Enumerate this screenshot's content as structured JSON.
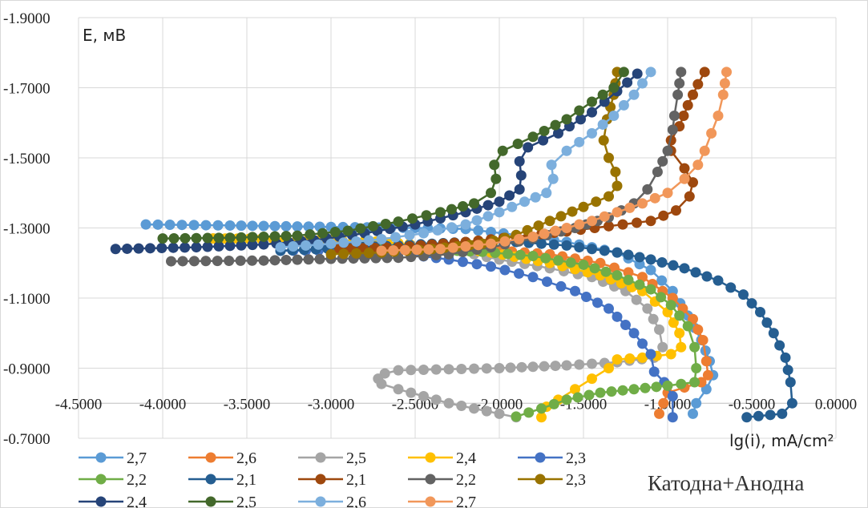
{
  "chart_data": {
    "type": "scatter",
    "title": "",
    "xlabel": "lg(i), mA/cm²",
    "ylabel": "E, мВ",
    "annotation": "Катодна+Анодна",
    "xlim": [
      -4.5,
      0.0
    ],
    "ylim": [
      -0.7,
      -1.9
    ],
    "x_ticks": [
      "-4.5000",
      "-4.0000",
      "-3.5000",
      "-3.0000",
      "-2.5000",
      "-2.0000",
      "-1.5000",
      "-1.0000",
      "-0.5000",
      "0.0000"
    ],
    "y_ticks": [
      "-1.9000",
      "-1.7000",
      "-1.5000",
      "-1.3000",
      "-1.1000",
      "-0.9000",
      "-0.7000"
    ],
    "gridlines": true,
    "legend_position": "bottom",
    "series": [
      {
        "name": "2,7",
        "color": "#5b9bd5",
        "points": [
          [
            -4.1,
            -1.31
          ],
          [
            -3.6,
            -1.307
          ],
          [
            -3.0,
            -1.303
          ],
          [
            -2.5,
            -1.3
          ],
          [
            -2.2,
            -1.297
          ],
          [
            -1.9,
            -1.28
          ],
          [
            -1.6,
            -1.26
          ],
          [
            -1.3,
            -1.23
          ],
          [
            -1.1,
            -1.18
          ],
          [
            -0.97,
            -1.12
          ],
          [
            -0.88,
            -1.05
          ],
          [
            -0.8,
            -0.98
          ],
          [
            -0.75,
            -0.92
          ],
          [
            -0.73,
            -0.88
          ],
          [
            -0.77,
            -0.84
          ],
          [
            -0.83,
            -0.8
          ],
          [
            -0.85,
            -0.77
          ]
        ]
      },
      {
        "name": "2,6",
        "color": "#ed7d31",
        "points": [
          [
            -2.6,
            -1.235
          ],
          [
            -2.3,
            -1.237
          ],
          [
            -2.0,
            -1.235
          ],
          [
            -1.7,
            -1.225
          ],
          [
            -1.4,
            -1.2
          ],
          [
            -1.15,
            -1.16
          ],
          [
            -0.97,
            -1.1
          ],
          [
            -0.85,
            -1.04
          ],
          [
            -0.79,
            -0.98
          ],
          [
            -0.77,
            -0.92
          ],
          [
            -0.76,
            -0.88
          ],
          [
            -0.8,
            -0.86
          ],
          [
            -0.9,
            -0.845
          ],
          [
            -1.0,
            -0.83
          ],
          [
            -1.05,
            -0.77
          ]
        ]
      },
      {
        "name": "2,5",
        "color": "#a5a5a5",
        "points": [
          [
            -3.7,
            -1.27
          ],
          [
            -3.4,
            -1.268
          ],
          [
            -3.0,
            -1.262
          ],
          [
            -2.6,
            -1.255
          ],
          [
            -2.3,
            -1.24
          ],
          [
            -2.0,
            -1.21
          ],
          [
            -1.7,
            -1.185
          ],
          [
            -1.45,
            -1.16
          ],
          [
            -1.25,
            -1.12
          ],
          [
            -1.12,
            -1.07
          ],
          [
            -1.05,
            -1.01
          ],
          [
            -1.03,
            -0.96
          ],
          [
            -1.08,
            -0.93
          ],
          [
            -1.3,
            -0.917
          ],
          [
            -1.6,
            -0.908
          ],
          [
            -2.0,
            -0.9
          ],
          [
            -2.3,
            -0.897
          ],
          [
            -2.6,
            -0.894
          ],
          [
            -2.68,
            -0.885
          ],
          [
            -2.72,
            -0.87
          ],
          [
            -2.7,
            -0.855
          ],
          [
            -2.6,
            -0.84
          ],
          [
            -2.45,
            -0.82
          ],
          [
            -2.3,
            -0.8
          ],
          [
            -2.15,
            -0.785
          ],
          [
            -2.0,
            -0.77
          ],
          [
            -1.9,
            -0.76
          ]
        ]
      },
      {
        "name": "2,4",
        "color": "#ffc000",
        "points": [
          [
            -3.7,
            -1.27
          ],
          [
            -3.2,
            -1.268
          ],
          [
            -2.8,
            -1.263
          ],
          [
            -2.4,
            -1.25
          ],
          [
            -2.05,
            -1.23
          ],
          [
            -1.7,
            -1.2
          ],
          [
            -1.4,
            -1.165
          ],
          [
            -1.15,
            -1.12
          ],
          [
            -1.0,
            -1.06
          ],
          [
            -0.93,
            -1.0
          ],
          [
            -0.92,
            -0.96
          ],
          [
            -0.98,
            -0.94
          ],
          [
            -1.15,
            -0.93
          ],
          [
            -1.3,
            -0.925
          ],
          [
            -1.35,
            -0.9
          ],
          [
            -1.45,
            -0.87
          ],
          [
            -1.55,
            -0.84
          ],
          [
            -1.65,
            -0.81
          ],
          [
            -1.72,
            -0.79
          ],
          [
            -1.75,
            -0.76
          ]
        ]
      },
      {
        "name": "2,3",
        "color": "#4472c4",
        "points": [
          [
            -3.3,
            -1.235
          ],
          [
            -3.0,
            -1.236
          ],
          [
            -2.6,
            -1.228
          ],
          [
            -2.3,
            -1.21
          ],
          [
            -2.05,
            -1.19
          ],
          [
            -1.8,
            -1.16
          ],
          [
            -1.55,
            -1.12
          ],
          [
            -1.35,
            -1.07
          ],
          [
            -1.2,
            -1.0
          ],
          [
            -1.1,
            -0.94
          ],
          [
            -1.08,
            -0.89
          ],
          [
            -1.02,
            -0.86
          ],
          [
            -0.97,
            -0.82
          ],
          [
            -0.97,
            -0.76
          ]
        ]
      },
      {
        "name": "2,2",
        "color": "#70ad47",
        "points": [
          [
            -2.7,
            -1.24
          ],
          [
            -2.4,
            -1.238
          ],
          [
            -2.1,
            -1.232
          ],
          [
            -1.8,
            -1.22
          ],
          [
            -1.5,
            -1.195
          ],
          [
            -1.3,
            -1.165
          ],
          [
            -1.1,
            -1.125
          ],
          [
            -0.98,
            -1.08
          ],
          [
            -0.88,
            -1.02
          ],
          [
            -0.84,
            -0.96
          ],
          [
            -0.83,
            -0.9
          ],
          [
            -0.84,
            -0.86
          ],
          [
            -1.0,
            -0.85
          ],
          [
            -1.4,
            -0.83
          ],
          [
            -1.6,
            -0.81
          ],
          [
            -1.75,
            -0.785
          ],
          [
            -1.9,
            -0.762
          ]
        ]
      },
      {
        "name": "2,1",
        "color": "#255e91",
        "points": [
          [
            -3.3,
            -1.235
          ],
          [
            -2.6,
            -1.25
          ],
          [
            -2.2,
            -1.26
          ],
          [
            -1.9,
            -1.26
          ],
          [
            -1.6,
            -1.25
          ],
          [
            -1.3,
            -1.23
          ],
          [
            -1.1,
            -1.21
          ],
          [
            -0.9,
            -1.185
          ],
          [
            -0.7,
            -1.15
          ],
          [
            -0.55,
            -1.11
          ],
          [
            -0.45,
            -1.06
          ],
          [
            -0.37,
            -1.0
          ],
          [
            -0.3,
            -0.93
          ],
          [
            -0.27,
            -0.86
          ],
          [
            -0.26,
            -0.8
          ],
          [
            -0.32,
            -0.77
          ],
          [
            -0.53,
            -0.76
          ]
        ]
      },
      {
        "name": "2,1",
        "color": "#9e480e",
        "points": [
          [
            -2.95,
            -1.24
          ],
          [
            -2.6,
            -1.245
          ],
          [
            -2.2,
            -1.26
          ],
          [
            -1.9,
            -1.275
          ],
          [
            -1.6,
            -1.29
          ],
          [
            -1.35,
            -1.305
          ],
          [
            -1.1,
            -1.32
          ],
          [
            -0.95,
            -1.35
          ],
          [
            -0.87,
            -1.39
          ],
          [
            -0.85,
            -1.43
          ],
          [
            -0.9,
            -1.47
          ],
          [
            -0.98,
            -1.52
          ],
          [
            -0.98,
            -1.55
          ],
          [
            -0.93,
            -1.59
          ],
          [
            -0.88,
            -1.65
          ],
          [
            -0.82,
            -1.71
          ],
          [
            -0.78,
            -1.745
          ]
        ]
      },
      {
        "name": "2,2",
        "color": "#636363",
        "points": [
          [
            -3.95,
            -1.205
          ],
          [
            -3.4,
            -1.207
          ],
          [
            -3.0,
            -1.212
          ],
          [
            -2.6,
            -1.215
          ],
          [
            -2.3,
            -1.225
          ],
          [
            -2.05,
            -1.245
          ],
          [
            -1.8,
            -1.27
          ],
          [
            -1.55,
            -1.3
          ],
          [
            -1.35,
            -1.33
          ],
          [
            -1.2,
            -1.37
          ],
          [
            -1.12,
            -1.41
          ],
          [
            -1.06,
            -1.46
          ],
          [
            -1.0,
            -1.52
          ],
          [
            -0.97,
            -1.58
          ],
          [
            -0.96,
            -1.62
          ],
          [
            -0.94,
            -1.68
          ],
          [
            -0.92,
            -1.745
          ]
        ]
      },
      {
        "name": "2,3",
        "color": "#997300",
        "points": [
          [
            -3.0,
            -1.225
          ],
          [
            -2.7,
            -1.23
          ],
          [
            -2.4,
            -1.24
          ],
          [
            -2.1,
            -1.255
          ],
          [
            -1.9,
            -1.28
          ],
          [
            -1.7,
            -1.32
          ],
          [
            -1.5,
            -1.36
          ],
          [
            -1.35,
            -1.39
          ],
          [
            -1.3,
            -1.42
          ],
          [
            -1.31,
            -1.46
          ],
          [
            -1.35,
            -1.5
          ],
          [
            -1.38,
            -1.55
          ],
          [
            -1.36,
            -1.61
          ],
          [
            -1.32,
            -1.68
          ],
          [
            -1.3,
            -1.745
          ]
        ]
      },
      {
        "name": "2,4",
        "color": "#264478",
        "points": [
          [
            -4.28,
            -1.24
          ],
          [
            -3.8,
            -1.245
          ],
          [
            -3.4,
            -1.253
          ],
          [
            -3.1,
            -1.265
          ],
          [
            -2.8,
            -1.285
          ],
          [
            -2.5,
            -1.31
          ],
          [
            -2.2,
            -1.345
          ],
          [
            -2.0,
            -1.375
          ],
          [
            -1.88,
            -1.41
          ],
          [
            -1.87,
            -1.45
          ],
          [
            -1.88,
            -1.49
          ],
          [
            -1.83,
            -1.53
          ],
          [
            -1.65,
            -1.57
          ],
          [
            -1.45,
            -1.63
          ],
          [
            -1.3,
            -1.69
          ],
          [
            -1.18,
            -1.74
          ]
        ]
      },
      {
        "name": "2,5",
        "color": "#43682b",
        "points": [
          [
            -4.0,
            -1.27
          ],
          [
            -3.6,
            -1.272
          ],
          [
            -3.2,
            -1.278
          ],
          [
            -2.9,
            -1.292
          ],
          [
            -2.6,
            -1.318
          ],
          [
            -2.35,
            -1.345
          ],
          [
            -2.15,
            -1.37
          ],
          [
            -2.05,
            -1.4
          ],
          [
            -2.02,
            -1.44
          ],
          [
            -2.03,
            -1.48
          ],
          [
            -1.98,
            -1.52
          ],
          [
            -1.8,
            -1.56
          ],
          [
            -1.6,
            -1.61
          ],
          [
            -1.45,
            -1.66
          ],
          [
            -1.32,
            -1.7
          ],
          [
            -1.26,
            -1.745
          ]
        ]
      },
      {
        "name": "2,6",
        "color": "#7cafdd",
        "points": [
          [
            -3.3,
            -1.245
          ],
          [
            -3.0,
            -1.255
          ],
          [
            -2.7,
            -1.268
          ],
          [
            -2.45,
            -1.285
          ],
          [
            -2.2,
            -1.31
          ],
          [
            -2.0,
            -1.345
          ],
          [
            -1.85,
            -1.375
          ],
          [
            -1.72,
            -1.4
          ],
          [
            -1.68,
            -1.44
          ],
          [
            -1.69,
            -1.48
          ],
          [
            -1.6,
            -1.52
          ],
          [
            -1.45,
            -1.57
          ],
          [
            -1.32,
            -1.62
          ],
          [
            -1.2,
            -1.68
          ],
          [
            -1.1,
            -1.745
          ]
        ]
      },
      {
        "name": "2,7",
        "color": "#f1975a",
        "points": [
          [
            -2.7,
            -1.235
          ],
          [
            -2.35,
            -1.24
          ],
          [
            -2.05,
            -1.255
          ],
          [
            -1.8,
            -1.275
          ],
          [
            -1.6,
            -1.3
          ],
          [
            -1.45,
            -1.32
          ],
          [
            -1.3,
            -1.345
          ],
          [
            -1.15,
            -1.37
          ],
          [
            -1.0,
            -1.4
          ],
          [
            -0.9,
            -1.44
          ],
          [
            -0.82,
            -1.48
          ],
          [
            -0.78,
            -1.52
          ],
          [
            -0.74,
            -1.57
          ],
          [
            -0.7,
            -1.62
          ],
          [
            -0.67,
            -1.68
          ],
          [
            -0.65,
            -1.745
          ]
        ]
      }
    ]
  }
}
